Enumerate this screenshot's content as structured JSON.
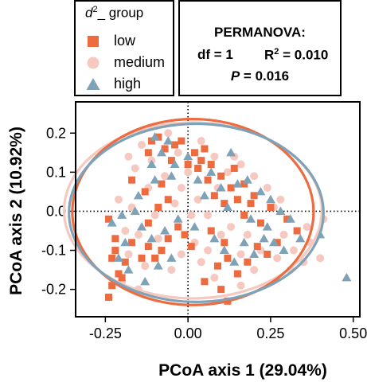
{
  "legend": {
    "title_prefix": "d",
    "title_sup": "2",
    "title_suffix": "_ group",
    "items": [
      {
        "label": "low",
        "shape": "square",
        "color": "#EE6B3F"
      },
      {
        "label": "medium",
        "shape": "circle",
        "color": "#F6C9C0"
      },
      {
        "label": "high",
        "shape": "triangle",
        "color": "#7EA2B8"
      }
    ]
  },
  "stats": {
    "title": "PERMANOVA:",
    "df": "df = 1",
    "r2_prefix": "R",
    "r2_sup": "2",
    "r2_suffix": " = 0.010",
    "p_letter": "P",
    "p_suffix": " = 0.016"
  },
  "chart_data": {
    "type": "scatter",
    "xlabel": "PCoA axis 1 (29.04%)",
    "ylabel": "PCoA axis 2 (10.92%)",
    "xlim": [
      -0.34,
      0.52
    ],
    "ylim": [
      -0.27,
      0.28
    ],
    "xticks": [
      -0.25,
      0.0,
      0.25,
      0.5
    ],
    "xtick_labels": [
      "-0.25",
      "0.00",
      "0.25",
      "0.50"
    ],
    "yticks": [
      -0.2,
      -0.1,
      0.0,
      0.1,
      0.2
    ],
    "ytick_labels": [
      "-0.2",
      "-0.1",
      "0.0",
      "0.1",
      "0.2"
    ],
    "reference_lines": {
      "x": 0,
      "y": 0,
      "style": "dotted"
    },
    "grid": false,
    "series": [
      {
        "name": "low",
        "marker": "square",
        "color": "#EE6B3F",
        "points": [
          [
            -0.24,
            -0.02
          ],
          [
            -0.22,
            -0.07
          ],
          [
            -0.23,
            -0.12
          ],
          [
            -0.21,
            -0.16
          ],
          [
            -0.23,
            -0.19
          ],
          [
            -0.24,
            -0.22
          ],
          [
            -0.2,
            -0.17
          ],
          [
            -0.22,
            -0.1
          ],
          [
            -0.19,
            -0.13
          ],
          [
            -0.17,
            -0.08
          ],
          [
            -0.14,
            -0.12
          ],
          [
            -0.12,
            -0.09
          ],
          [
            -0.1,
            -0.12
          ],
          [
            -0.08,
            -0.1
          ],
          [
            -0.06,
            -0.07
          ],
          [
            -0.12,
            -0.03
          ],
          [
            -0.09,
            0.01
          ],
          [
            -0.06,
            0.03
          ],
          [
            -0.03,
            -0.04
          ],
          [
            -0.01,
            -0.06
          ],
          [
            -0.13,
            0.05
          ],
          [
            -0.08,
            0.07
          ],
          [
            -0.17,
            0.08
          ],
          [
            -0.12,
            0.15
          ],
          [
            -0.07,
            0.16
          ],
          [
            -0.04,
            0.17
          ],
          [
            -0.02,
            0.18
          ],
          [
            0.02,
            0.15
          ],
          [
            0.04,
            0.13
          ],
          [
            0.05,
            0.16
          ],
          [
            0.03,
            0.11
          ],
          [
            0.06,
            0.08
          ],
          [
            0.08,
            0.04
          ],
          [
            0.11,
            0.02
          ],
          [
            0.13,
            0.06
          ],
          [
            0.15,
            0.03
          ],
          [
            0.17,
            0.07
          ],
          [
            0.19,
            0.02
          ],
          [
            0.14,
            0.11
          ],
          [
            0.2,
            0.04
          ],
          [
            0.22,
            -0.03
          ],
          [
            0.25,
            0.01
          ],
          [
            0.3,
            -0.02
          ],
          [
            0.33,
            -0.05
          ],
          [
            0.27,
            -0.08
          ],
          [
            0.24,
            -0.11
          ],
          [
            0.21,
            -0.09
          ],
          [
            0.18,
            -0.13
          ],
          [
            0.11,
            -0.08
          ],
          [
            0.09,
            -0.14
          ],
          [
            0.15,
            -0.16
          ],
          [
            0.1,
            -0.2
          ],
          [
            0.05,
            -0.18
          ],
          [
            0.12,
            -0.12
          ],
          [
            0.01,
            -0.09
          ],
          [
            0.07,
            -0.05
          ],
          [
            0.1,
            0.09
          ],
          [
            0.07,
            0.12
          ],
          [
            0.0,
            0.12
          ],
          [
            -0.05,
            0.13
          ],
          [
            -0.11,
            0.18
          ],
          [
            -0.09,
            0.19
          ],
          [
            0.12,
            -0.23
          ],
          [
            0.17,
            -0.01
          ]
        ]
      },
      {
        "name": "medium",
        "marker": "circle",
        "color": "#F6C9C0",
        "points": [
          [
            -0.21,
            0.03
          ],
          [
            -0.19,
            -0.05
          ],
          [
            -0.17,
            0.01
          ],
          [
            -0.15,
            -0.06
          ],
          [
            -0.16,
            0.11
          ],
          [
            -0.14,
            0.17
          ],
          [
            -0.11,
            0.13
          ],
          [
            -0.06,
            0.2
          ],
          [
            -0.03,
            0.15
          ],
          [
            0.0,
            0.1
          ],
          [
            0.04,
            0.18
          ],
          [
            0.08,
            0.14
          ],
          [
            0.12,
            0.1
          ],
          [
            0.16,
            0.12
          ],
          [
            0.2,
            0.09
          ],
          [
            0.24,
            0.06
          ],
          [
            0.26,
            0.01
          ],
          [
            0.29,
            -0.06
          ],
          [
            0.32,
            -0.1
          ],
          [
            0.37,
            -0.08
          ],
          [
            0.4,
            -0.12
          ],
          [
            0.41,
            -0.02
          ],
          [
            0.35,
            -0.13
          ],
          [
            0.31,
            -0.15
          ],
          [
            0.27,
            -0.12
          ],
          [
            0.2,
            -0.15
          ],
          [
            0.16,
            -0.19
          ],
          [
            0.08,
            -0.17
          ],
          [
            0.04,
            -0.13
          ],
          [
            0.02,
            -0.08
          ],
          [
            -0.02,
            -0.11
          ],
          [
            -0.05,
            -0.15
          ],
          [
            -0.09,
            -0.07
          ],
          [
            -0.13,
            -0.14
          ],
          [
            -0.18,
            -0.11
          ],
          [
            -0.2,
            -0.18
          ],
          [
            -0.15,
            -0.2
          ],
          [
            -0.1,
            -0.01
          ],
          [
            -0.07,
            0.09
          ],
          [
            -0.02,
            0.06
          ],
          [
            0.03,
            0.03
          ],
          [
            0.06,
            -0.01
          ],
          [
            0.09,
            0.06
          ],
          [
            0.13,
            -0.04
          ],
          [
            0.18,
            -0.06
          ],
          [
            0.22,
            -0.1
          ],
          [
            0.28,
            0.03
          ],
          [
            0.14,
            0.14
          ],
          [
            0.06,
            -0.1
          ],
          [
            -0.04,
            0.02
          ],
          [
            -0.12,
            0.06
          ],
          [
            -0.18,
            0.14
          ],
          [
            0.1,
            -0.06
          ],
          [
            0.36,
            -0.04
          ],
          [
            0.16,
            -0.11
          ],
          [
            0.01,
            -0.01
          ]
        ]
      },
      {
        "name": "high",
        "marker": "triangle",
        "color": "#7EA2B8",
        "points": [
          [
            -0.23,
            -0.03
          ],
          [
            -0.2,
            -0.01
          ],
          [
            -0.16,
            0.0
          ],
          [
            -0.19,
            -0.08
          ],
          [
            -0.14,
            -0.04
          ],
          [
            -0.11,
            -0.07
          ],
          [
            -0.07,
            -0.05
          ],
          [
            -0.03,
            -0.02
          ],
          [
            -0.18,
            -0.15
          ],
          [
            -0.13,
            -0.18
          ],
          [
            -0.09,
            -0.14
          ],
          [
            -0.05,
            -0.12
          ],
          [
            -0.21,
            -0.12
          ],
          [
            -0.15,
            0.04
          ],
          [
            -0.1,
            0.08
          ],
          [
            -0.05,
            0.09
          ],
          [
            -0.11,
            0.12
          ],
          [
            -0.08,
            0.15
          ],
          [
            -0.04,
            0.12
          ],
          [
            -0.1,
            0.19
          ],
          [
            -0.06,
            0.18
          ],
          [
            0.0,
            0.14
          ],
          [
            0.03,
            0.08
          ],
          [
            0.07,
            0.1
          ],
          [
            0.1,
            0.06
          ],
          [
            0.15,
            0.07
          ],
          [
            0.18,
            0.08
          ],
          [
            0.22,
            0.05
          ],
          [
            0.25,
            0.03
          ],
          [
            0.28,
            0.0
          ],
          [
            0.31,
            -0.02
          ],
          [
            0.34,
            -0.07
          ],
          [
            0.29,
            -0.1
          ],
          [
            0.23,
            -0.07
          ],
          [
            0.2,
            -0.11
          ],
          [
            0.17,
            -0.08
          ],
          [
            0.14,
            -0.13
          ],
          [
            0.11,
            -0.1
          ],
          [
            0.08,
            -0.07
          ],
          [
            0.12,
            0.01
          ],
          [
            0.19,
            -0.02
          ],
          [
            0.24,
            -0.04
          ],
          [
            0.02,
            -0.04
          ],
          [
            0.05,
            0.04
          ],
          [
            0.48,
            -0.17
          ],
          [
            0.4,
            -0.06
          ],
          [
            0.26,
            -0.08
          ],
          [
            0.13,
            0.15
          ]
        ]
      }
    ],
    "ellipses": [
      {
        "series": "low",
        "color": "#EE6B3F",
        "cx": 0.015,
        "cy": -0.002,
        "rx": 0.365,
        "ry": 0.238,
        "rotation_deg": 0
      },
      {
        "series": "medium",
        "color": "#F6C9C0",
        "cx": 0.015,
        "cy": 0.002,
        "rx": 0.39,
        "ry": 0.225,
        "rotation_deg": 0
      },
      {
        "series": "high",
        "color": "#7EA2B8",
        "cx": 0.025,
        "cy": -0.004,
        "rx": 0.385,
        "ry": 0.228,
        "rotation_deg": 0
      }
    ]
  }
}
